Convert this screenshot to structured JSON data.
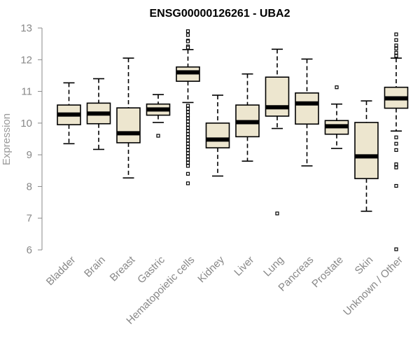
{
  "chart_data": {
    "type": "boxplot",
    "title": "ENSG00000126261 - UBA2",
    "xlabel": "",
    "ylabel": "Expression",
    "ylim": [
      6,
      13
    ],
    "yticks": [
      "6",
      "7",
      "8",
      "9",
      "10",
      "11",
      "12",
      "13"
    ],
    "grid": false,
    "colors": {
      "box_fill": "#ede6cf",
      "box_stroke": "#000000",
      "axis": "#888888"
    },
    "categories": [
      "Bladder",
      "Brain",
      "Breast",
      "Gastric",
      "Hematopoietic cells",
      "Kidney",
      "Liver",
      "Lung",
      "Pancreas",
      "Prostate",
      "Skin",
      "Unknown / Other"
    ],
    "boxes": [
      {
        "min": 9.35,
        "q1": 9.95,
        "median": 10.27,
        "q3": 10.57,
        "max": 11.27,
        "outliers": []
      },
      {
        "min": 9.17,
        "q1": 9.98,
        "median": 10.3,
        "q3": 10.63,
        "max": 11.4,
        "outliers": []
      },
      {
        "min": 8.27,
        "q1": 9.38,
        "median": 9.68,
        "q3": 10.48,
        "max": 12.05,
        "outliers": []
      },
      {
        "min": 10.02,
        "q1": 10.25,
        "median": 10.43,
        "q3": 10.6,
        "max": 10.9,
        "outliers": [
          9.6
        ]
      },
      {
        "min": 10.65,
        "q1": 11.32,
        "median": 11.6,
        "q3": 11.77,
        "max": 12.32,
        "outliers": [
          12.9,
          12.78,
          12.6,
          12.58,
          12.42,
          12.38,
          10.55,
          10.45,
          10.35,
          10.25,
          10.15,
          10.05,
          9.95,
          9.85,
          9.75,
          9.65,
          9.55,
          9.45,
          9.35,
          9.25,
          9.15,
          9.05,
          8.95,
          8.85,
          8.75,
          8.65,
          8.4,
          8.1
        ]
      },
      {
        "min": 8.33,
        "q1": 9.22,
        "median": 9.48,
        "q3": 10.0,
        "max": 10.88,
        "outliers": []
      },
      {
        "min": 8.8,
        "q1": 9.57,
        "median": 10.03,
        "q3": 10.57,
        "max": 11.55,
        "outliers": []
      },
      {
        "min": 9.83,
        "q1": 10.22,
        "median": 10.5,
        "q3": 11.45,
        "max": 12.33,
        "outliers": [
          7.15
        ]
      },
      {
        "min": 8.65,
        "q1": 9.97,
        "median": 10.62,
        "q3": 10.95,
        "max": 12.02,
        "outliers": []
      },
      {
        "min": 9.2,
        "q1": 9.65,
        "median": 9.9,
        "q3": 10.08,
        "max": 10.6,
        "outliers": [
          11.13
        ]
      },
      {
        "min": 7.22,
        "q1": 8.25,
        "median": 8.95,
        "q3": 10.02,
        "max": 10.7,
        "outliers": []
      },
      {
        "min": 9.75,
        "q1": 10.47,
        "median": 10.78,
        "q3": 11.13,
        "max": 12.05,
        "outliers": [
          12.8,
          12.62,
          12.45,
          12.35,
          12.22,
          12.12,
          9.55,
          9.35,
          9.15,
          8.7,
          8.6,
          8.02,
          6.02
        ]
      }
    ]
  }
}
